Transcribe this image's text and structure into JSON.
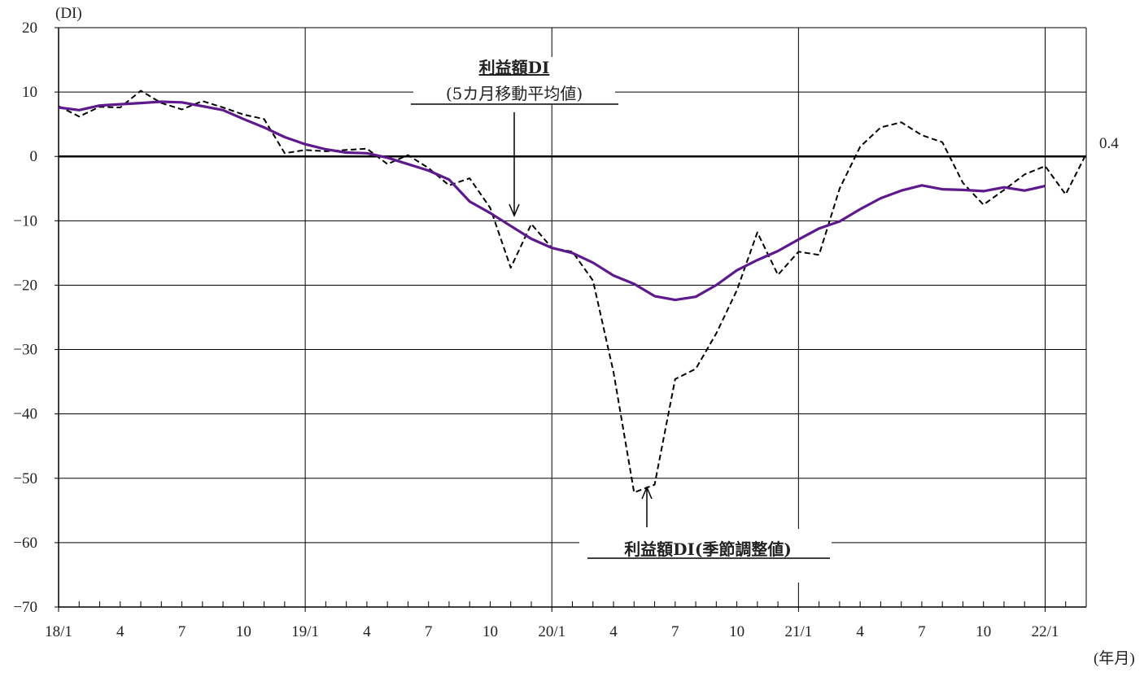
{
  "chart_data": {
    "type": "line",
    "title": "",
    "ylabel": "(DI)",
    "xlabel": "(年月)",
    "ylim": [
      -70,
      20
    ],
    "yticks": [
      20,
      10,
      0,
      -10,
      -20,
      -30,
      -40,
      -50,
      -60,
      -70
    ],
    "ytick_labels": [
      "20",
      "10",
      "0",
      "−10",
      "−20",
      "−30",
      "−40",
      "−50",
      "−60",
      "−70"
    ],
    "xtick_labels": [
      {
        "i": 0,
        "label": "18/1"
      },
      {
        "i": 3,
        "label": "4"
      },
      {
        "i": 6,
        "label": "7"
      },
      {
        "i": 9,
        "label": "10"
      },
      {
        "i": 12,
        "label": "19/1"
      },
      {
        "i": 15,
        "label": "4"
      },
      {
        "i": 18,
        "label": "7"
      },
      {
        "i": 21,
        "label": "10"
      },
      {
        "i": 24,
        "label": "20/1"
      },
      {
        "i": 27,
        "label": "4"
      },
      {
        "i": 30,
        "label": "7"
      },
      {
        "i": 33,
        "label": "10"
      },
      {
        "i": 36,
        "label": "21/1"
      },
      {
        "i": 39,
        "label": "4"
      },
      {
        "i": 42,
        "label": "7"
      },
      {
        "i": 45,
        "label": "10"
      },
      {
        "i": 48,
        "label": "22/1"
      }
    ],
    "x_count": 51,
    "grid": true,
    "series": [
      {
        "name": "利益額DI(季節調整値)",
        "style": "dashed",
        "color": "#000000",
        "values": [
          7.8,
          6.2,
          7.7,
          7.6,
          10.2,
          8.3,
          7.3,
          8.6,
          7.6,
          6.5,
          5.8,
          0.5,
          1.0,
          0.8,
          1.0,
          1.2,
          -1.2,
          0.2,
          -1.8,
          -4.5,
          -3.4,
          -8.0,
          -17.3,
          -10.5,
          -14.2,
          -14.8,
          -19.3,
          -33.5,
          -52.2,
          -51.0,
          -34.6,
          -33.0,
          -27.5,
          -20.8,
          -11.8,
          -18.4,
          -14.8,
          -15.3,
          -5.0,
          1.5,
          4.5,
          5.3,
          3.3,
          2.2,
          -4.1,
          -7.5,
          -5.2,
          -2.8,
          -1.5,
          -5.9,
          0.4
        ]
      },
      {
        "name": "利益額DI(5カ月移動平均値)",
        "style": "solid",
        "color": "#5e1a8c",
        "values": [
          7.6,
          7.2,
          7.9,
          8.1,
          8.3,
          8.5,
          8.4,
          7.8,
          7.2,
          5.8,
          4.5,
          3.0,
          1.9,
          1.1,
          0.6,
          0.5,
          -0.2,
          -1.2,
          -2.2,
          -3.6,
          -7.0,
          -8.8,
          -10.8,
          -12.8,
          -14.2,
          -15.0,
          -16.5,
          -18.5,
          -19.8,
          -21.7,
          -22.3,
          -21.8,
          -20.0,
          -17.7,
          -16.1,
          -14.7,
          -12.9,
          -11.2,
          -10.1,
          -8.2,
          -6.5,
          -5.3,
          -4.5,
          -5.1,
          -5.2,
          -5.4,
          -4.8,
          -5.3,
          -4.6,
          null,
          null
        ]
      }
    ],
    "annotations": {
      "last_value_label": "0.4",
      "ma_label_line1": "利益額DI",
      "ma_label_line2": "(5カ月移動平均値)",
      "sa_label": "利益額DI(季節調整値)"
    }
  }
}
